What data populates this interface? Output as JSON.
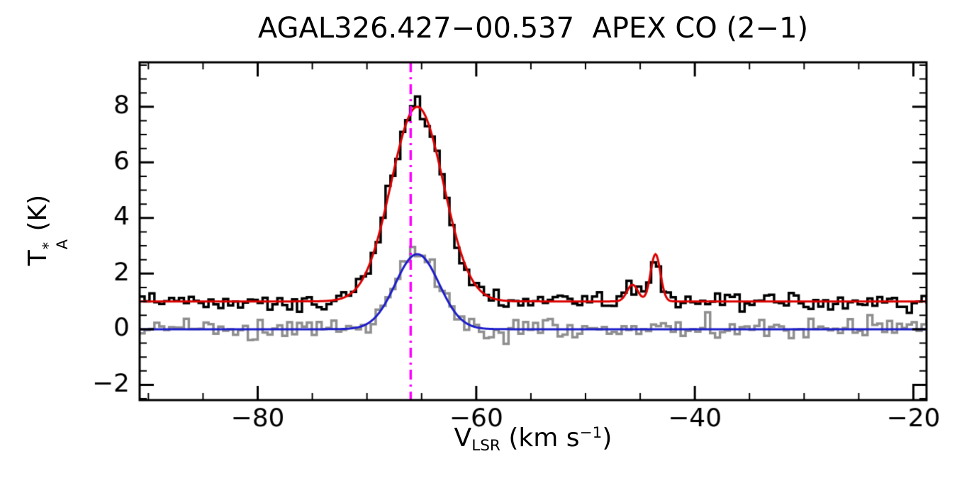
{
  "figure": {
    "title": "AGAL326.427−00.537  APEX CO (2−1)",
    "xlabel": {
      "main": "V",
      "sub": "LSR",
      "unit_pre": " (km s",
      "sup": "−1",
      "unit_post": ")"
    },
    "ylabel": {
      "main": "T",
      "sup": "*",
      "sub": "A",
      "unit": " (K)"
    }
  },
  "axes": {
    "x": {
      "lim": [
        -90.8,
        -18.8
      ],
      "major_ticks": [
        -80,
        -60,
        -40,
        -20
      ],
      "tick_labels": [
        "−80",
        "−60",
        "−40",
        "−20"
      ],
      "minor_step": 5
    },
    "y": {
      "lim": [
        -2.55,
        9.6
      ],
      "major_ticks": [
        -2,
        0,
        2,
        4,
        6,
        8
      ],
      "tick_labels": [
        "−2",
        "0",
        "2",
        "4",
        "6",
        "8"
      ],
      "minor_step": 0.5
    }
  },
  "chart_data": {
    "type": "line",
    "title": "AGAL326.427−00.537  APEX CO (2−1)",
    "xlabel": "V_LSR (km s−1)",
    "ylabel": "T*_A (K)",
    "xlim": [
      -90.8,
      -18.8
    ],
    "ylim": [
      -2.55,
      9.6
    ],
    "grid": false,
    "legend": "none",
    "channel_width_kms": 0.45,
    "series": [
      {
        "name": "observed-spectrum-black-histogram",
        "style": "histogram",
        "color": "#000000",
        "line_width": 3.5,
        "baseline_K": 1.0,
        "noise_rms_K": 0.17,
        "gaussian_components": [
          {
            "amplitude_K": 7.0,
            "center_kms": -65.4,
            "sigma_kms": 2.4
          },
          {
            "amplitude_K": 0.6,
            "center_kms": -45.7,
            "sigma_kms": 0.5
          },
          {
            "amplitude_K": 1.7,
            "center_kms": -43.6,
            "sigma_kms": 0.45
          }
        ]
      },
      {
        "name": "secondary-spectrum-gray-histogram",
        "style": "histogram",
        "color": "#8f8f8f",
        "line_width": 3.5,
        "baseline_K": 0.0,
        "noise_rms_K": 0.19,
        "gaussian_components": [
          {
            "amplitude_K": 2.75,
            "center_kms": -65.4,
            "sigma_kms": 2.0
          }
        ]
      },
      {
        "name": "gaussian-fit-red-curve",
        "style": "curve",
        "color": "#dd0000",
        "line_width": 3.0,
        "baseline_K": 1.0,
        "noise_rms_K": 0,
        "gaussian_components": [
          {
            "amplitude_K": 7.0,
            "center_kms": -65.4,
            "sigma_kms": 2.4
          },
          {
            "amplitude_K": 0.6,
            "center_kms": -45.7,
            "sigma_kms": 0.5
          },
          {
            "amplitude_K": 1.7,
            "center_kms": -43.6,
            "sigma_kms": 0.45
          }
        ]
      },
      {
        "name": "gaussian-fit-blue-curve",
        "style": "curve",
        "color": "#1d1dcc",
        "line_width": 3.0,
        "baseline_K": 0.0,
        "noise_rms_K": 0,
        "gaussian_components": [
          {
            "amplitude_K": 2.7,
            "center_kms": -65.4,
            "sigma_kms": 2.0
          }
        ]
      }
    ],
    "marker_line": {
      "orientation": "vertical",
      "x_kms": -66.0,
      "color": "#ff00ff",
      "style": "dash-dot",
      "line_width": 3.5
    }
  }
}
